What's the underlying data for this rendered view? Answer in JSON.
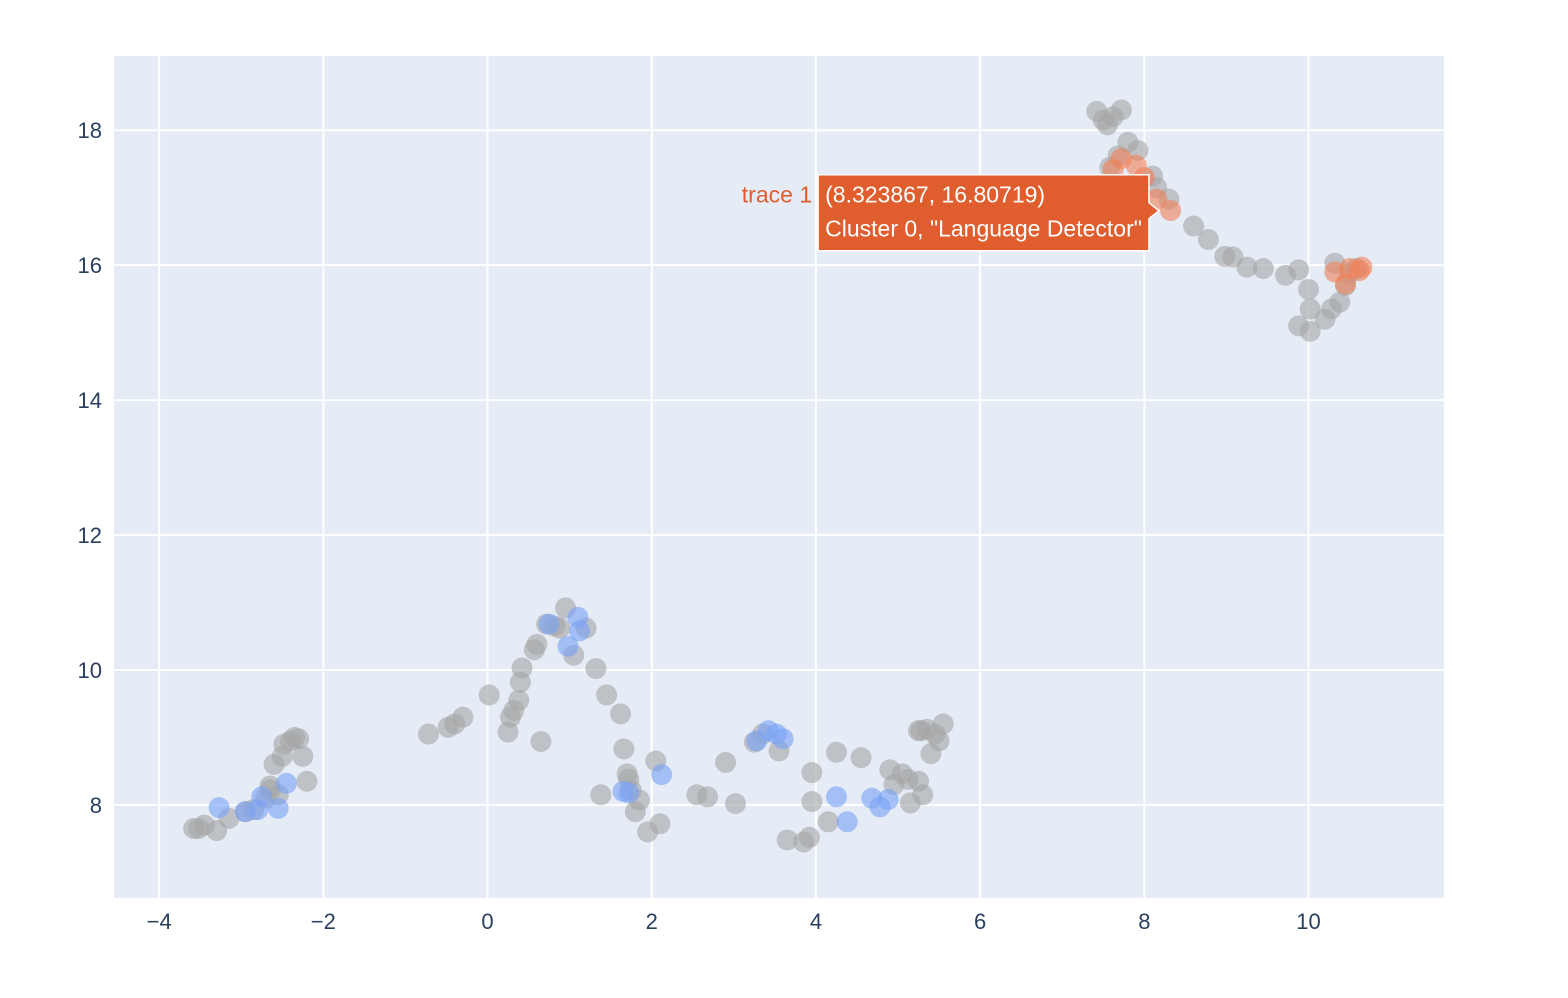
{
  "chart_data": {
    "type": "scatter",
    "xlim": [
      -4.55,
      11.65
    ],
    "ylim": [
      6.62,
      19.1
    ],
    "xticks": [
      -4,
      -2,
      0,
      2,
      4,
      6,
      8,
      10
    ],
    "yticks": [
      8,
      10,
      12,
      14,
      16,
      18
    ],
    "xtick_labels": [
      "−4",
      "−2",
      "0",
      "2",
      "4",
      "6",
      "8",
      "10"
    ],
    "ytick_labels": [
      "8",
      "10",
      "12",
      "14",
      "16",
      "18"
    ],
    "grid": true,
    "series": [
      {
        "color": "#a6a6a6",
        "x": [
          -3.58,
          -3.52,
          -3.45,
          -3.3,
          -3.15,
          -2.95,
          -2.85,
          -2.7,
          -2.65,
          -2.6,
          -2.5,
          -2.48,
          -2.4,
          -2.35,
          -2.3,
          -2.25,
          -2.2,
          -2.55,
          -2.65,
          -0.72,
          -0.48,
          -0.4,
          -0.3,
          0.02,
          0.25,
          0.28,
          0.32,
          0.38,
          0.4,
          0.42,
          0.57,
          0.6,
          0.65,
          0.72,
          0.82,
          0.88,
          0.95,
          1.05,
          1.2,
          1.32,
          1.45,
          1.62,
          1.66,
          1.7,
          1.72,
          1.75,
          1.8,
          1.85,
          1.95,
          2.05,
          2.1,
          1.38,
          2.55,
          2.68,
          2.9,
          3.02,
          3.25,
          3.35,
          3.55,
          3.65,
          3.85,
          3.92,
          3.95,
          4.15,
          4.25,
          4.55,
          4.9,
          4.95,
          5.05,
          5.12,
          5.15,
          5.25,
          5.28,
          5.3,
          5.35,
          5.4,
          5.45,
          5.5,
          5.55,
          3.95,
          5.25,
          7.42,
          7.5,
          7.55,
          7.62,
          7.68,
          7.72,
          7.58,
          7.8,
          7.92,
          8.1,
          8.15,
          8.3,
          8.6,
          8.78,
          8.98,
          9.08,
          9.25,
          9.45,
          9.72,
          9.88,
          10.0,
          10.02,
          9.88,
          10.02,
          10.2,
          10.28,
          10.32,
          10.38,
          10.45,
          10.5,
          10.58
        ],
        "y": [
          7.65,
          7.65,
          7.7,
          7.62,
          7.8,
          7.9,
          7.93,
          8.1,
          8.22,
          8.6,
          8.72,
          8.9,
          8.95,
          9.0,
          8.98,
          8.72,
          8.35,
          8.15,
          8.28,
          9.05,
          9.15,
          9.2,
          9.3,
          9.63,
          9.08,
          9.3,
          9.4,
          9.55,
          9.82,
          10.03,
          10.3,
          10.38,
          8.94,
          10.68,
          10.65,
          10.62,
          10.92,
          10.22,
          10.62,
          10.02,
          9.63,
          9.35,
          8.83,
          8.46,
          8.38,
          8.22,
          7.9,
          8.07,
          7.6,
          8.65,
          7.72,
          8.15,
          8.15,
          8.12,
          8.63,
          8.02,
          8.93,
          9.05,
          8.8,
          7.48,
          7.45,
          7.52,
          8.48,
          7.75,
          8.78,
          8.7,
          8.52,
          8.3,
          8.46,
          8.38,
          8.03,
          8.35,
          9.1,
          8.15,
          9.12,
          8.76,
          9.05,
          8.95,
          9.2,
          8.05,
          9.1,
          18.28,
          18.15,
          18.08,
          18.2,
          17.62,
          18.3,
          17.45,
          17.82,
          17.7,
          17.32,
          17.15,
          16.98,
          16.58,
          16.38,
          16.13,
          16.12,
          15.97,
          15.95,
          15.85,
          15.93,
          15.64,
          15.35,
          15.1,
          15.02,
          15.2,
          15.35,
          16.03,
          15.45,
          15.7,
          15.88,
          15.95
        ]
      },
      {
        "color": "#7aa3f5",
        "x": [
          -3.27,
          -2.95,
          -2.8,
          -2.75,
          -2.55,
          -2.45,
          0.75,
          0.98,
          1.1,
          1.12,
          1.65,
          1.72,
          2.12,
          3.28,
          3.42,
          3.52,
          3.6,
          4.25,
          4.38,
          4.68,
          4.78,
          4.88
        ],
        "y": [
          7.96,
          7.9,
          7.93,
          8.12,
          7.95,
          8.32,
          10.68,
          10.35,
          10.78,
          10.58,
          8.2,
          8.18,
          8.45,
          8.95,
          9.1,
          9.05,
          8.98,
          8.12,
          7.75,
          8.1,
          7.97,
          8.08
        ]
      },
      {
        "color": "#f0825a",
        "x": [
          7.62,
          7.72,
          7.9,
          8.0,
          8.15,
          8.32,
          10.32,
          10.45,
          10.5,
          10.62,
          10.65
        ],
        "y": [
          17.42,
          17.58,
          17.48,
          17.3,
          16.98,
          16.81,
          15.9,
          15.72,
          15.95,
          15.92,
          15.97
        ]
      }
    ],
    "hover": {
      "name": "trace 1",
      "line1": "(8.323867, 16.80719)",
      "line2": "Cluster 0, \"Language Detector\"",
      "x": 8.323867,
      "y": 16.80719,
      "color": "#e05d2e"
    }
  }
}
